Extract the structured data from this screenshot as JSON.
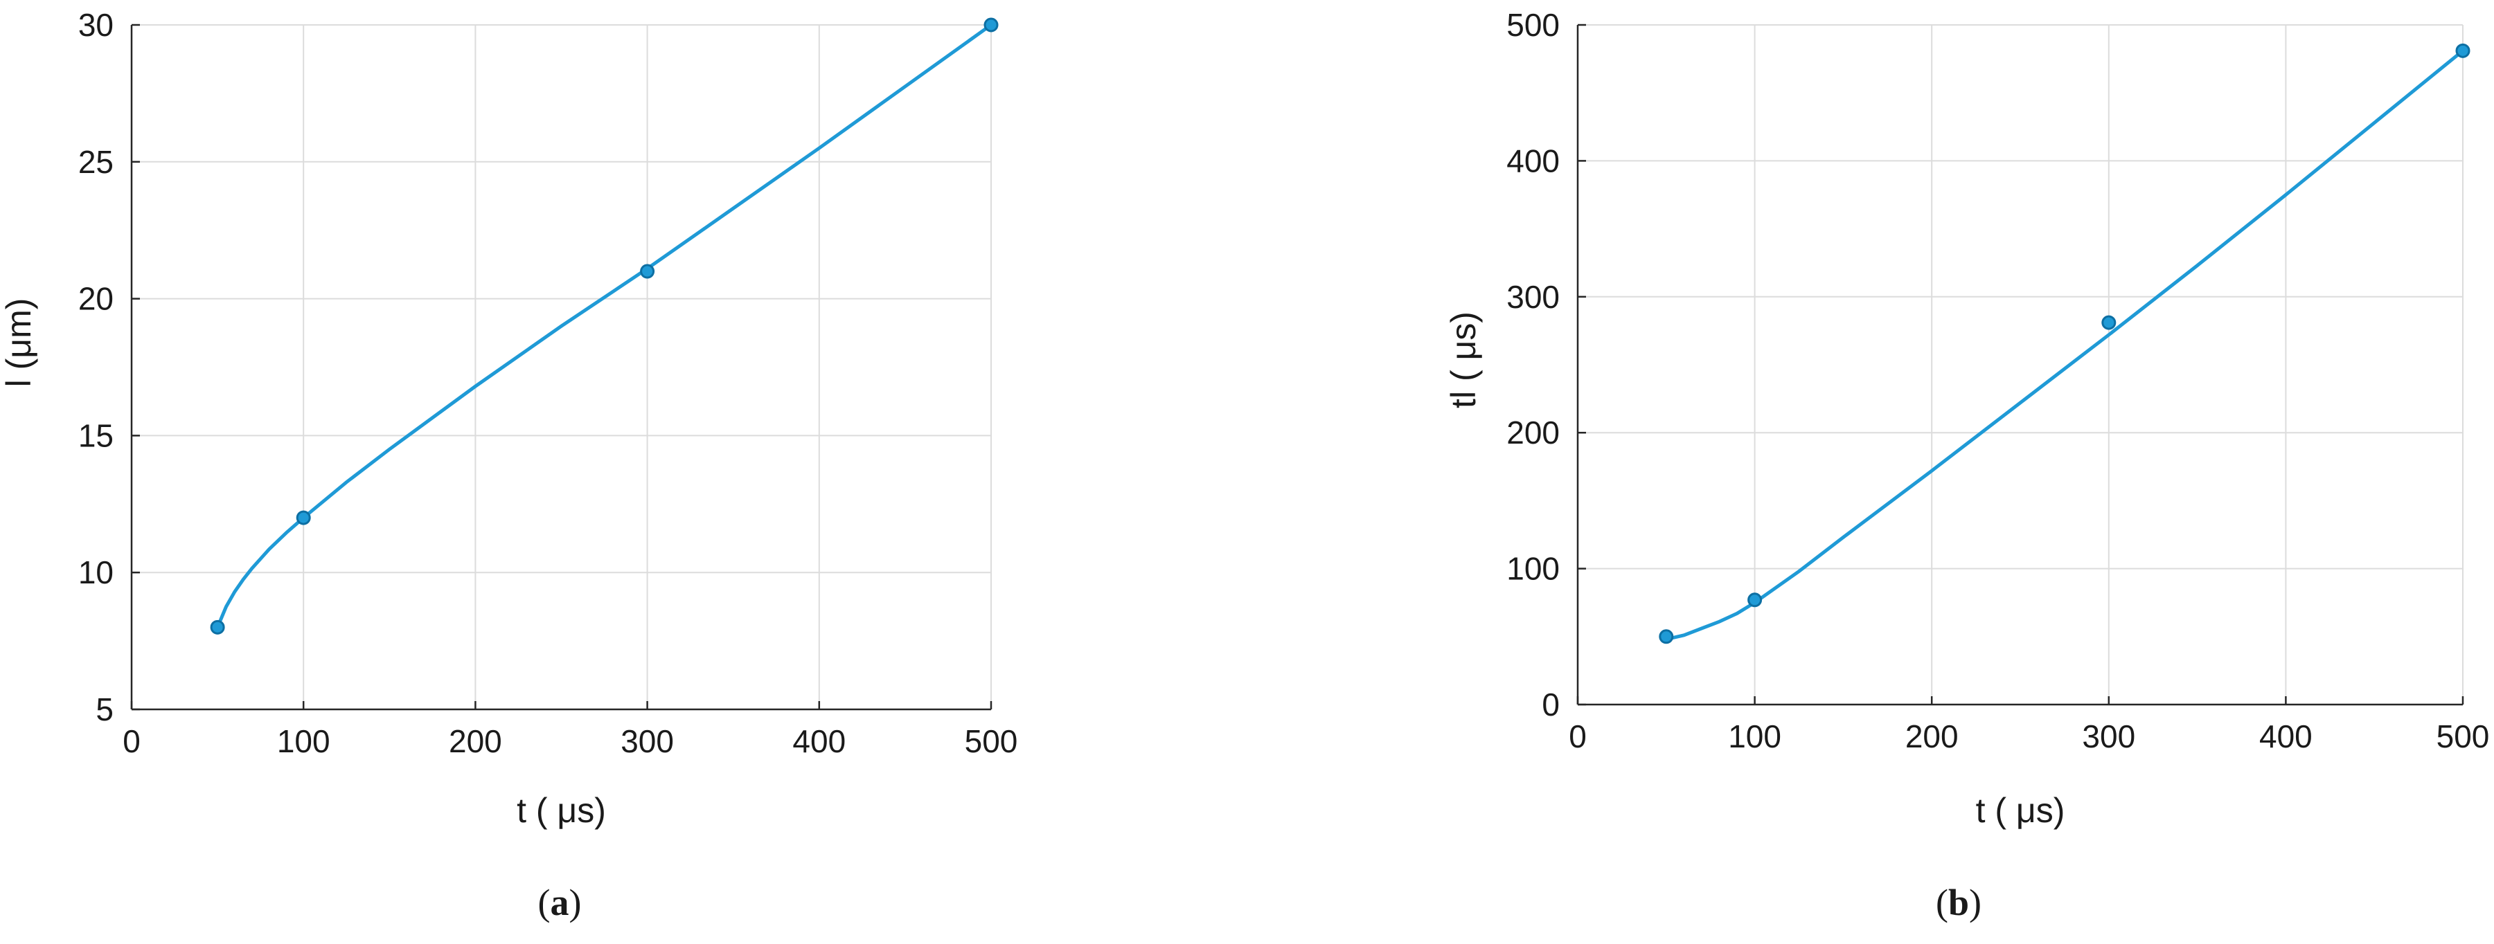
{
  "chart_data": [
    {
      "type": "line",
      "panel_label": "a",
      "xlabel": "t ( μs)",
      "ylabel": "l (μm)",
      "xlim": [
        0,
        500
      ],
      "ylim": [
        5,
        30
      ],
      "xticks": [
        0,
        100,
        200,
        300,
        400,
        500
      ],
      "yticks": [
        5,
        10,
        15,
        20,
        25,
        30
      ],
      "grid": true,
      "color": "#1f9ad6",
      "points": {
        "x": [
          50,
          100,
          300,
          500
        ],
        "y": [
          8,
          12,
          21,
          30
        ]
      },
      "fit_curve": {
        "x": [
          50,
          55,
          60,
          65,
          70,
          80,
          90,
          100,
          125,
          150,
          200,
          250,
          300,
          350,
          400,
          450,
          500
        ],
        "y": [
          8,
          8.75,
          9.3,
          9.75,
          10.15,
          10.85,
          11.45,
          12,
          13.3,
          14.5,
          16.8,
          19.0,
          21.1,
          23.3,
          25.5,
          27.75,
          30
        ]
      }
    },
    {
      "type": "line",
      "panel_label": "b",
      "xlabel": "t ( μs)",
      "ylabel": "tl ( μs)",
      "xlim": [
        0,
        500
      ],
      "ylim": [
        0,
        500
      ],
      "xticks": [
        0,
        100,
        200,
        300,
        400,
        500
      ],
      "yticks": [
        0,
        100,
        200,
        300,
        400,
        500
      ],
      "grid": true,
      "color": "#1f9ad6",
      "points": {
        "x": [
          50,
          100,
          300,
          500
        ],
        "y": [
          50,
          77,
          281,
          481
        ]
      },
      "fit_curve": {
        "x": [
          50,
          60,
          70,
          80,
          90,
          100,
          125,
          150,
          200,
          250,
          300,
          350,
          400,
          450,
          500
        ],
        "y": [
          48,
          51,
          56,
          61,
          67,
          75,
          98,
          123,
          172,
          222,
          272,
          323,
          375,
          428,
          481
        ]
      }
    }
  ]
}
